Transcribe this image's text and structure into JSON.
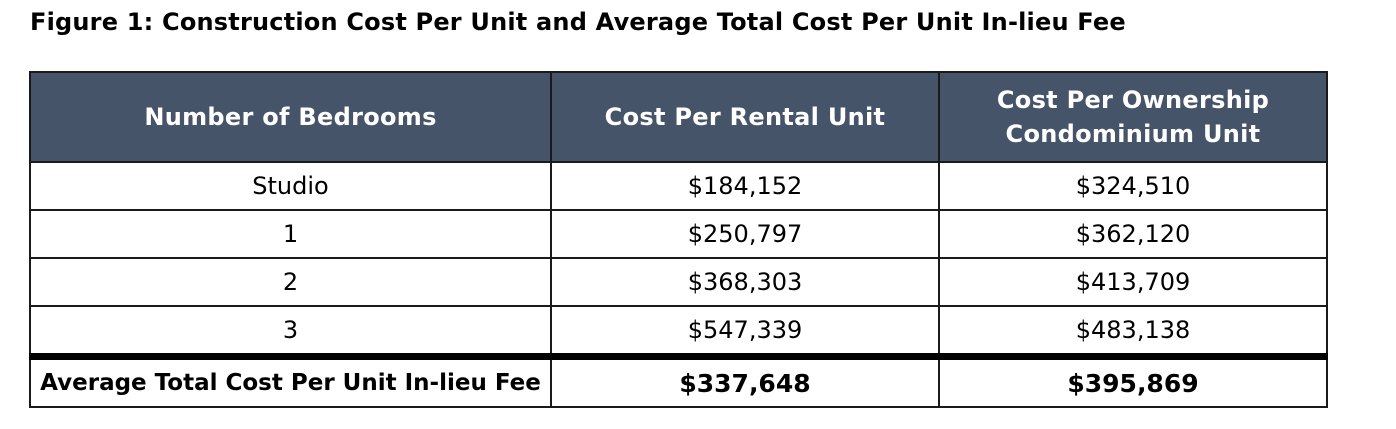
{
  "title": "Figure 1: Construction Cost Per Unit and Average Total Cost Per Unit In-lieu Fee",
  "table": {
    "headers": [
      "Number of Bedrooms",
      "Cost Per Rental Unit",
      "Cost Per Ownership Condominium Unit"
    ],
    "rows": [
      [
        "Studio",
        "$184,152",
        "$324,510"
      ],
      [
        "1",
        "$250,797",
        "$362,120"
      ],
      [
        "2",
        "$368,303",
        "$413,709"
      ],
      [
        "3",
        "$547,339",
        "$483,138"
      ]
    ],
    "footer": [
      "Average Total Cost Per Unit In-lieu Fee",
      "$337,648",
      "$395,869"
    ]
  },
  "colors": {
    "header_background": "#465469",
    "header_text": "#ffffff"
  }
}
